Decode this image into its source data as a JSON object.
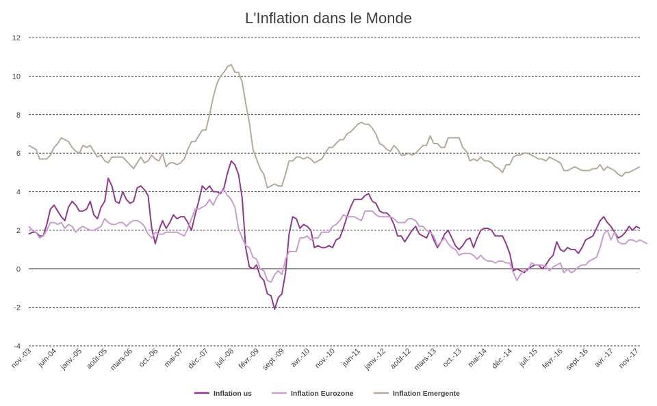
{
  "chart_data": {
    "type": "line",
    "title": "L'Inflation dans le Monde",
    "xlabel": "",
    "ylabel": "",
    "ylim": [
      -4,
      12
    ],
    "yticks": [
      -4,
      -2,
      0,
      2,
      4,
      6,
      8,
      10,
      12
    ],
    "grid": "horizontal dashed",
    "legend_position": "bottom",
    "x_start": "nov.-03",
    "x_end": "janv.-18",
    "x_tick_labels": [
      "nov.-03",
      "juin-04",
      "janv.-05",
      "août-05",
      "mars-06",
      "oct.-06",
      "mai-07",
      "déc.-07",
      "juil.-08",
      "févr.-09",
      "sept.-09",
      "avr.-10",
      "nov.-10",
      "juin-11",
      "janv.-12",
      "août-12",
      "mars-13",
      "oct.-13",
      "mai-14",
      "déc.-14",
      "juil.-15",
      "févr.-16",
      "sept.-16",
      "avr.-17",
      "nov.-17"
    ],
    "series": [
      {
        "name": "Inflation us",
        "color": "#8e3a8a",
        "values": [
          1.8,
          1.9,
          1.9,
          1.7,
          1.7,
          2.3,
          3.1,
          3.3,
          3.0,
          2.7,
          2.5,
          3.2,
          3.5,
          3.3,
          3.0,
          3.0,
          3.1,
          3.5,
          2.8,
          2.6,
          3.2,
          3.5,
          4.7,
          4.3,
          3.5,
          3.4,
          4.0,
          3.6,
          3.4,
          3.5,
          4.2,
          4.3,
          4.1,
          3.8,
          2.1,
          1.3,
          2.0,
          2.5,
          2.1,
          2.4,
          2.8,
          2.6,
          2.7,
          2.7,
          2.4,
          2.0,
          2.8,
          3.5,
          4.3,
          4.1,
          4.3,
          4.0,
          4.0,
          3.9,
          4.2,
          5.0,
          5.6,
          5.4,
          4.9,
          3.7,
          1.1,
          0.1,
          0.0,
          0.2,
          -0.4,
          -0.6,
          -1.3,
          -1.4,
          -2.1,
          -1.5,
          -1.3,
          -0.2,
          1.8,
          2.7,
          2.6,
          2.1,
          2.3,
          2.2,
          2.0,
          1.1,
          1.2,
          1.1,
          1.1,
          1.2,
          1.1,
          1.5,
          1.6,
          2.1,
          2.7,
          3.2,
          3.6,
          3.6,
          3.6,
          3.8,
          3.9,
          3.5,
          3.4,
          3.0,
          2.9,
          2.9,
          2.7,
          2.3,
          1.7,
          1.7,
          1.4,
          1.7,
          2.0,
          2.2,
          1.8,
          1.7,
          1.6,
          2.0,
          1.5,
          1.1,
          1.4,
          1.8,
          2.0,
          1.6,
          1.2,
          1.0,
          1.2,
          1.5,
          1.6,
          1.1,
          1.6,
          2.0,
          2.1,
          2.1,
          2.0,
          1.7,
          1.7,
          1.7,
          1.3,
          0.8,
          -0.1,
          0.0,
          -0.1,
          -0.2,
          0.0,
          0.1,
          0.2,
          0.2,
          0.0,
          0.2,
          0.5,
          0.7,
          1.4,
          1.0,
          0.9,
          1.1,
          1.0,
          1.0,
          0.8,
          1.1,
          1.5,
          1.6,
          1.7,
          2.1,
          2.5,
          2.7,
          2.4,
          2.2,
          1.9,
          1.6,
          1.7,
          1.9,
          2.2,
          2.0,
          2.2,
          2.1
        ]
      },
      {
        "name": "Inflation Eurozone",
        "color": "#c99bcf",
        "values": [
          2.2,
          2.0,
          1.9,
          1.6,
          1.7,
          2.0,
          2.4,
          2.4,
          2.3,
          2.4,
          2.1,
          2.3,
          2.2,
          1.9,
          2.1,
          2.2,
          2.1,
          2.0,
          2.0,
          2.1,
          2.2,
          2.6,
          2.4,
          2.3,
          2.3,
          2.4,
          2.4,
          2.2,
          2.4,
          2.5,
          2.5,
          2.4,
          2.2,
          1.8,
          1.6,
          1.9,
          1.8,
          1.8,
          1.9,
          1.9,
          1.9,
          1.9,
          1.8,
          1.7,
          2.1,
          2.6,
          3.1,
          3.1,
          3.2,
          3.3,
          3.6,
          3.3,
          3.7,
          4.0,
          4.1,
          3.8,
          3.6,
          3.2,
          2.1,
          1.6,
          1.2,
          1.1,
          0.6,
          0.5,
          0.0,
          -0.1,
          -0.6,
          -0.7,
          -0.3,
          -0.1,
          -0.3,
          0.5,
          0.9,
          0.9,
          0.9,
          1.6,
          1.6,
          1.7,
          1.5,
          1.6,
          1.6,
          1.9,
          1.9,
          1.9,
          2.2,
          2.3,
          2.5,
          2.8,
          2.7,
          2.7,
          2.7,
          2.6,
          2.5,
          3.0,
          3.0,
          3.0,
          2.8,
          2.7,
          2.7,
          2.7,
          2.7,
          2.6,
          2.4,
          2.4,
          2.4,
          2.6,
          2.6,
          2.5,
          2.2,
          2.2,
          2.0,
          1.9,
          1.7,
          1.2,
          1.4,
          1.6,
          1.3,
          1.1,
          1.0,
          0.7,
          0.8,
          0.8,
          0.8,
          0.7,
          0.5,
          0.7,
          0.5,
          0.4,
          0.4,
          0.3,
          0.4,
          0.4,
          0.3,
          0.3,
          -0.2,
          -0.6,
          -0.3,
          -0.1,
          -0.1,
          0.3,
          0.2,
          0.2,
          0.2,
          0.1,
          -0.1,
          0.1,
          0.2,
          0.3,
          -0.2,
          0.0,
          -0.2,
          -0.1,
          0.1,
          0.2,
          0.2,
          0.4,
          0.5,
          0.6,
          1.1,
          1.8,
          2.0,
          1.5,
          1.9,
          1.4,
          1.3,
          1.3,
          1.5,
          1.5,
          1.4,
          1.5,
          1.4,
          1.3
        ]
      },
      {
        "name": "Inflation Emergente",
        "color": "#b4aa9c",
        "values": [
          6.4,
          6.3,
          6.2,
          5.7,
          5.7,
          5.7,
          5.9,
          6.3,
          6.5,
          6.8,
          6.7,
          6.6,
          6.3,
          6.1,
          6.0,
          6.4,
          6.3,
          6.4,
          6.1,
          5.8,
          5.9,
          5.6,
          5.5,
          5.8,
          5.8,
          5.8,
          5.8,
          5.6,
          5.4,
          5.2,
          5.5,
          5.8,
          5.5,
          5.6,
          5.9,
          5.7,
          5.6,
          6.0,
          5.3,
          5.5,
          5.5,
          5.4,
          5.5,
          5.7,
          6.2,
          6.6,
          6.6,
          6.9,
          7.2,
          7.2,
          8.0,
          8.9,
          9.6,
          10.0,
          10.2,
          10.5,
          10.6,
          10.2,
          10.2,
          9.7,
          8.6,
          7.6,
          6.2,
          5.7,
          5.2,
          4.9,
          4.2,
          4.3,
          4.4,
          4.3,
          4.3,
          4.9,
          5.6,
          5.6,
          5.8,
          5.8,
          5.7,
          5.8,
          5.7,
          5.5,
          5.6,
          5.7,
          6.0,
          6.3,
          6.3,
          6.5,
          6.7,
          6.7,
          7.0,
          7.1,
          7.3,
          7.5,
          7.6,
          7.5,
          7.5,
          7.3,
          7.0,
          6.5,
          6.4,
          6.2,
          6.1,
          6.4,
          6.2,
          5.9,
          5.9,
          6.0,
          5.9,
          6.0,
          6.2,
          6.4,
          6.4,
          6.9,
          6.5,
          6.5,
          6.3,
          6.3,
          6.8,
          6.8,
          6.8,
          6.8,
          6.3,
          6.1,
          5.6,
          5.7,
          5.6,
          5.8,
          5.6,
          5.6,
          5.5,
          5.3,
          5.2,
          5.0,
          5.4,
          5.4,
          5.8,
          5.9,
          5.9,
          6.0,
          6.0,
          5.9,
          5.8,
          5.7,
          5.7,
          5.6,
          5.8,
          5.7,
          5.6,
          5.5,
          5.1,
          5.1,
          5.2,
          5.3,
          5.2,
          5.1,
          5.1,
          5.1,
          5.2,
          5.2,
          5.4,
          5.1,
          5.3,
          5.2,
          5.1,
          4.9,
          4.8,
          5.0,
          5.0,
          5.1,
          5.2,
          5.3
        ]
      }
    ]
  }
}
